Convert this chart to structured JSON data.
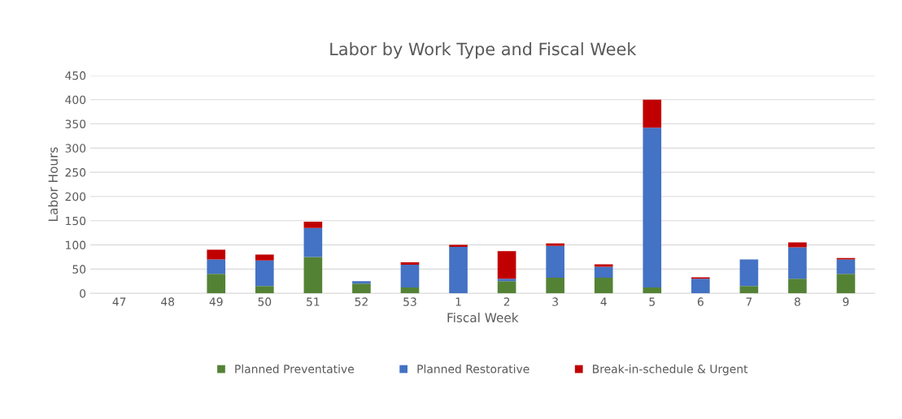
{
  "chart_data": {
    "type": "bar",
    "stacked": true,
    "title": "Labor by Work Type and Fiscal Week",
    "xlabel": "Fiscal Week",
    "ylabel": "Labor Hours",
    "categories": [
      "47",
      "48",
      "49",
      "50",
      "51",
      "52",
      "53",
      "1",
      "2",
      "3",
      "4",
      "5",
      "6",
      "7",
      "8",
      "9"
    ],
    "series": [
      {
        "name": "Planned Preventative",
        "color": "#548235",
        "values": [
          0,
          0,
          40,
          15,
          75,
          20,
          12,
          0,
          25,
          32,
          32,
          12,
          0,
          15,
          30,
          40
        ]
      },
      {
        "name": "Planned Restorative",
        "color": "#4472c4",
        "values": [
          0,
          0,
          30,
          53,
          60,
          5,
          47,
          96,
          5,
          66,
          23,
          330,
          30,
          55,
          65,
          30
        ]
      },
      {
        "name": "Break-in-schedule & Urgent",
        "color": "#c00000",
        "values": [
          0,
          0,
          20,
          12,
          13,
          0,
          5,
          4,
          57,
          5,
          5,
          58,
          3,
          0,
          10,
          3
        ]
      }
    ],
    "ylim": [
      0,
      450
    ],
    "yticks": [
      0,
      50,
      100,
      150,
      200,
      250,
      300,
      350,
      400,
      450
    ],
    "grid": "y",
    "legend": "bottom"
  }
}
